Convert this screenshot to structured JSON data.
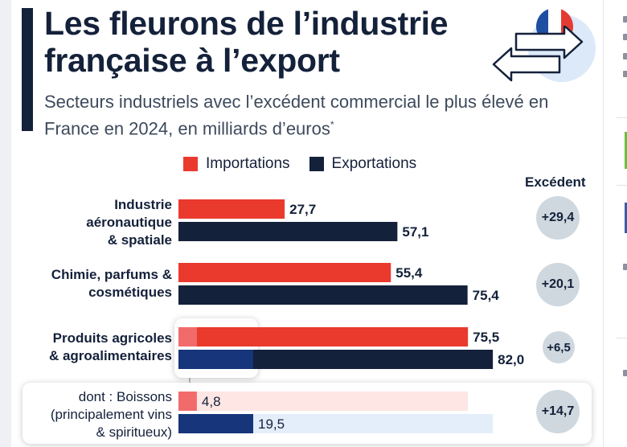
{
  "title": "Les fleurons de l’industrie française à l’export",
  "subtitle": "Secteurs industriels avec l’excédent commercial le plus élevé en France en 2024, en milliards d’euros",
  "subtitle_mark": "*",
  "colors": {
    "imports": "#ea3a2e",
    "exports": "#14213a",
    "highlight_imports": "#f26b6b",
    "highlight_exports": "#16357a",
    "bubble": "#cfd8df"
  },
  "chart_data": {
    "type": "bar",
    "orientation": "horizontal",
    "legend": [
      "Importations",
      "Exportations"
    ],
    "surplus_header": "Excédent",
    "categories": [
      {
        "label_lines": [
          "Industrie",
          "aéronautique",
          "& spatiale"
        ],
        "imports": 27.7,
        "exports": 57.1,
        "imports_label": "27,7",
        "exports_label": "57,1",
        "surplus": "+29,4"
      },
      {
        "label_lines": [
          "Chimie, parfums &",
          "cosmétiques"
        ],
        "imports": 55.4,
        "exports": 75.4,
        "imports_label": "55,4",
        "exports_label": "75,4",
        "surplus": "+20,1"
      },
      {
        "label_lines": [
          "Produits agricoles",
          "& agroalimentaires"
        ],
        "imports": 75.5,
        "exports": 82.0,
        "imports_label": "75,5",
        "exports_label": "82,0",
        "surplus": "+6,5"
      }
    ],
    "detail": {
      "label_lines": [
        "dont : Boissons",
        "(principalement vins",
        "& spiritueux)"
      ],
      "imports": 4.8,
      "exports": 19.5,
      "imports_label": "4,8",
      "exports_label": "19,5",
      "surplus": "+14,7"
    }
  }
}
